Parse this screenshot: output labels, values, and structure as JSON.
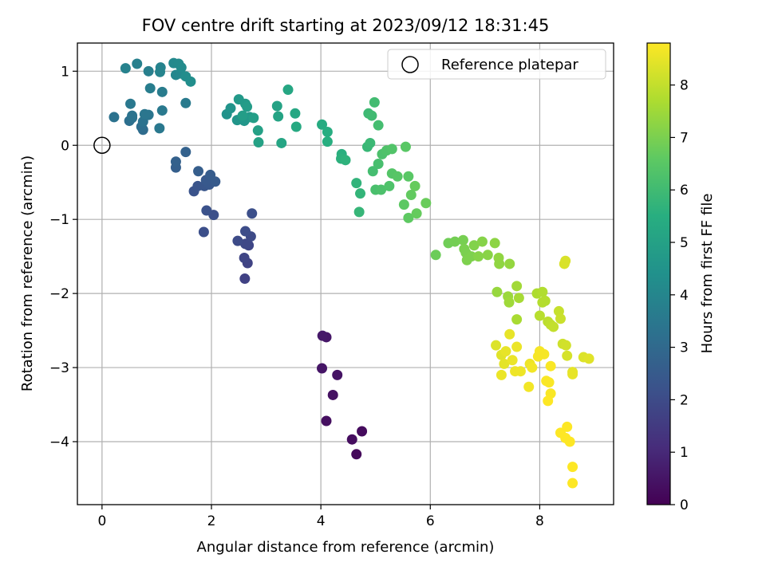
{
  "chart_data": {
    "type": "scatter",
    "title": "FOV centre drift starting at 2023/09/12 18:31:45",
    "xlabel": "Angular distance from reference (arcmin)",
    "ylabel": "Rotation from reference (arcmin)",
    "xlim": [
      -0.45,
      9.35
    ],
    "ylim": [
      -4.85,
      1.38
    ],
    "xticks": [
      0,
      2,
      4,
      6,
      8
    ],
    "xtick_labels": [
      "0",
      "2",
      "4",
      "6",
      "8"
    ],
    "yticks": [
      1,
      0,
      -1,
      -2,
      -3,
      -4
    ],
    "ytick_labels": [
      "1",
      "0",
      "−1",
      "−2",
      "−3",
      "−4"
    ],
    "grid": true,
    "legend": {
      "placement": "top-right",
      "entries": [
        "Reference platepar"
      ]
    },
    "reference_point": {
      "x": 0,
      "y": 0,
      "label": "Reference platepar"
    },
    "colorbar": {
      "label": "Hours from first FF file",
      "range": [
        0,
        8.8
      ],
      "ticks": [
        0,
        1,
        2,
        3,
        4,
        5,
        6,
        7,
        8
      ],
      "tick_labels": [
        "0",
        "1",
        "2",
        "3",
        "4",
        "5",
        "6",
        "7",
        "8"
      ],
      "colormap": "viridis"
    },
    "points": [
      [
        4.65,
        -4.17,
        0.2
      ],
      [
        4.75,
        -3.86,
        0.25
      ],
      [
        4.57,
        -3.97,
        0.3
      ],
      [
        4.1,
        -3.72,
        0.35
      ],
      [
        4.22,
        -3.37,
        0.4
      ],
      [
        4.3,
        -3.1,
        0.45
      ],
      [
        4.02,
        -3.01,
        0.5
      ],
      [
        4.1,
        -2.59,
        0.55
      ],
      [
        4.03,
        -2.57,
        0.6
      ],
      [
        2.61,
        -1.8,
        1.7
      ],
      [
        2.66,
        -1.59,
        1.75
      ],
      [
        2.6,
        -1.52,
        1.8
      ],
      [
        2.68,
        -1.35,
        1.85
      ],
      [
        2.62,
        -1.33,
        1.9
      ],
      [
        2.72,
        -1.23,
        1.95
      ],
      [
        2.48,
        -1.29,
        2.0
      ],
      [
        2.62,
        -1.16,
        2.05
      ],
      [
        2.74,
        -0.92,
        2.1
      ],
      [
        1.86,
        -1.17,
        2.1
      ],
      [
        2.04,
        -0.94,
        2.15
      ],
      [
        1.91,
        -0.88,
        2.2
      ],
      [
        1.68,
        -0.62,
        2.25
      ],
      [
        1.75,
        -0.55,
        2.3
      ],
      [
        1.87,
        -0.55,
        2.35
      ],
      [
        1.96,
        -0.53,
        2.4
      ],
      [
        1.9,
        -0.47,
        2.45
      ],
      [
        2.07,
        -0.49,
        2.5
      ],
      [
        1.98,
        -0.4,
        2.55
      ],
      [
        1.76,
        -0.35,
        2.6
      ],
      [
        1.35,
        -0.3,
        2.65
      ],
      [
        1.35,
        -0.22,
        2.7
      ],
      [
        1.53,
        -0.09,
        2.75
      ],
      [
        0.75,
        0.21,
        3.1
      ],
      [
        0.72,
        0.25,
        3.15
      ],
      [
        0.5,
        0.33,
        3.2
      ],
      [
        0.55,
        0.37,
        3.25
      ],
      [
        0.75,
        0.32,
        3.3
      ],
      [
        0.22,
        0.38,
        3.3
      ],
      [
        0.55,
        0.4,
        3.35
      ],
      [
        0.85,
        0.41,
        3.4
      ],
      [
        0.78,
        0.42,
        3.45
      ],
      [
        0.52,
        0.56,
        3.5
      ],
      [
        1.05,
        0.23,
        3.5
      ],
      [
        1.1,
        0.47,
        3.55
      ],
      [
        1.53,
        0.57,
        3.6
      ],
      [
        1.1,
        0.72,
        3.65
      ],
      [
        0.88,
        0.77,
        3.7
      ],
      [
        0.85,
        1.0,
        3.75
      ],
      [
        0.64,
        1.1,
        3.8
      ],
      [
        0.43,
        1.04,
        3.85
      ],
      [
        1.07,
        1.05,
        3.9
      ],
      [
        1.06,
        0.99,
        3.95
      ],
      [
        1.35,
        0.95,
        4.0
      ],
      [
        1.43,
        0.97,
        4.05
      ],
      [
        1.31,
        1.11,
        4.1
      ],
      [
        1.4,
        1.1,
        4.15
      ],
      [
        1.45,
        1.05,
        4.2
      ],
      [
        1.53,
        0.93,
        4.25
      ],
      [
        1.62,
        0.86,
        4.3
      ],
      [
        2.28,
        0.42,
        4.45
      ],
      [
        2.35,
        0.5,
        4.5
      ],
      [
        2.47,
        0.34,
        4.55
      ],
      [
        2.6,
        0.33,
        4.6
      ],
      [
        2.7,
        0.38,
        4.65
      ],
      [
        2.5,
        0.62,
        4.7
      ],
      [
        2.62,
        0.56,
        4.75
      ],
      [
        2.65,
        0.52,
        4.8
      ],
      [
        2.57,
        0.4,
        4.85
      ],
      [
        2.77,
        0.37,
        4.9
      ],
      [
        2.85,
        0.2,
        4.95
      ],
      [
        2.86,
        0.04,
        5.0
      ],
      [
        3.2,
        0.53,
        5.05
      ],
      [
        3.22,
        0.39,
        5.1
      ],
      [
        3.28,
        0.03,
        5.15
      ],
      [
        3.4,
        0.75,
        5.2
      ],
      [
        3.53,
        0.43,
        5.25
      ],
      [
        3.55,
        0.25,
        5.3
      ],
      [
        4.02,
        0.28,
        5.4
      ],
      [
        4.12,
        0.18,
        5.45
      ],
      [
        4.12,
        0.05,
        5.5
      ],
      [
        4.38,
        -0.12,
        5.55
      ],
      [
        4.37,
        -0.18,
        5.6
      ],
      [
        4.45,
        -0.2,
        5.65
      ],
      [
        4.65,
        -0.51,
        5.7
      ],
      [
        4.72,
        -0.65,
        5.75
      ],
      [
        4.7,
        -0.9,
        5.8
      ],
      [
        4.85,
        -0.02,
        5.85
      ],
      [
        4.9,
        0.03,
        5.9
      ],
      [
        4.87,
        0.43,
        5.95
      ],
      [
        4.93,
        0.4,
        6.0
      ],
      [
        4.98,
        0.58,
        6.05
      ],
      [
        5.05,
        0.27,
        6.1
      ],
      [
        4.95,
        -0.35,
        6.1
      ],
      [
        5.05,
        -0.25,
        6.15
      ],
      [
        5.0,
        -0.6,
        6.2
      ],
      [
        5.1,
        -0.6,
        6.25
      ],
      [
        5.12,
        -0.12,
        6.25
      ],
      [
        5.2,
        -0.07,
        6.3
      ],
      [
        5.25,
        -0.55,
        6.3
      ],
      [
        5.3,
        -0.05,
        6.35
      ],
      [
        5.3,
        -0.38,
        6.4
      ],
      [
        5.4,
        -0.42,
        6.45
      ],
      [
        5.6,
        -0.42,
        6.5
      ],
      [
        5.55,
        -0.02,
        6.5
      ],
      [
        5.52,
        -0.8,
        6.55
      ],
      [
        5.6,
        -0.98,
        6.6
      ],
      [
        5.65,
        -0.67,
        6.65
      ],
      [
        5.72,
        -0.55,
        6.7
      ],
      [
        5.75,
        -0.92,
        6.7
      ],
      [
        5.92,
        -0.78,
        6.75
      ],
      [
        6.1,
        -1.48,
        6.8
      ],
      [
        6.33,
        -1.32,
        6.85
      ],
      [
        6.45,
        -1.3,
        6.9
      ],
      [
        6.6,
        -1.28,
        6.95
      ],
      [
        6.62,
        -1.4,
        7.0
      ],
      [
        6.65,
        -1.45,
        7.0
      ],
      [
        6.67,
        -1.55,
        7.05
      ],
      [
        6.75,
        -1.5,
        7.05
      ],
      [
        6.8,
        -1.35,
        7.1
      ],
      [
        6.88,
        -1.5,
        7.15
      ],
      [
        6.95,
        -1.3,
        7.15
      ],
      [
        7.05,
        -1.48,
        7.2
      ],
      [
        7.18,
        -1.32,
        7.25
      ],
      [
        7.25,
        -1.52,
        7.3
      ],
      [
        7.26,
        -1.6,
        7.3
      ],
      [
        7.45,
        -1.6,
        7.35
      ],
      [
        7.22,
        -1.98,
        7.4
      ],
      [
        7.42,
        -2.04,
        7.45
      ],
      [
        7.44,
        -2.12,
        7.5
      ],
      [
        7.58,
        -1.9,
        7.55
      ],
      [
        7.62,
        -2.06,
        7.6
      ],
      [
        7.58,
        -2.35,
        7.65
      ],
      [
        7.95,
        -2.0,
        7.7
      ],
      [
        8.05,
        -1.98,
        7.75
      ],
      [
        8.05,
        -2.12,
        7.8
      ],
      [
        8.1,
        -2.1,
        7.8
      ],
      [
        8.0,
        -2.3,
        7.85
      ],
      [
        8.15,
        -2.38,
        7.9
      ],
      [
        8.2,
        -2.42,
        7.95
      ],
      [
        8.25,
        -2.45,
        8.0
      ],
      [
        8.35,
        -2.24,
        8.05
      ],
      [
        8.38,
        -2.34,
        8.1
      ],
      [
        8.42,
        -2.68,
        8.15
      ],
      [
        8.48,
        -2.7,
        8.2
      ],
      [
        8.5,
        -2.84,
        8.25
      ],
      [
        8.45,
        -1.6,
        8.3
      ],
      [
        8.47,
        -1.56,
        8.3
      ],
      [
        8.8,
        -2.86,
        8.35
      ],
      [
        8.9,
        -2.88,
        8.4
      ],
      [
        8.6,
        -3.06,
        8.45
      ],
      [
        8.6,
        -3.09,
        8.5
      ],
      [
        7.2,
        -2.7,
        8.35
      ],
      [
        7.3,
        -2.83,
        8.4
      ],
      [
        7.35,
        -2.95,
        8.45
      ],
      [
        7.38,
        -2.78,
        8.5
      ],
      [
        7.3,
        -3.1,
        8.55
      ],
      [
        7.45,
        -2.55,
        8.5
      ],
      [
        7.5,
        -2.9,
        8.55
      ],
      [
        7.55,
        -3.05,
        8.6
      ],
      [
        7.65,
        -3.05,
        8.6
      ],
      [
        7.58,
        -2.72,
        8.55
      ],
      [
        7.82,
        -2.95,
        8.6
      ],
      [
        7.8,
        -3.26,
        8.65
      ],
      [
        7.86,
        -3.0,
        8.65
      ],
      [
        7.97,
        -2.85,
        8.7
      ],
      [
        8.0,
        -2.78,
        8.7
      ],
      [
        8.08,
        -2.82,
        8.7
      ],
      [
        8.12,
        -3.18,
        8.75
      ],
      [
        8.17,
        -3.2,
        8.75
      ],
      [
        8.2,
        -3.35,
        8.75
      ],
      [
        8.15,
        -3.45,
        8.8
      ],
      [
        8.2,
        -2.98,
        8.75
      ],
      [
        8.38,
        -3.88,
        8.8
      ],
      [
        8.5,
        -3.8,
        8.8
      ],
      [
        8.47,
        -3.95,
        8.85
      ],
      [
        8.55,
        -4.0,
        8.85
      ],
      [
        8.6,
        -4.34,
        8.85
      ],
      [
        8.6,
        -4.56,
        8.9
      ]
    ]
  }
}
